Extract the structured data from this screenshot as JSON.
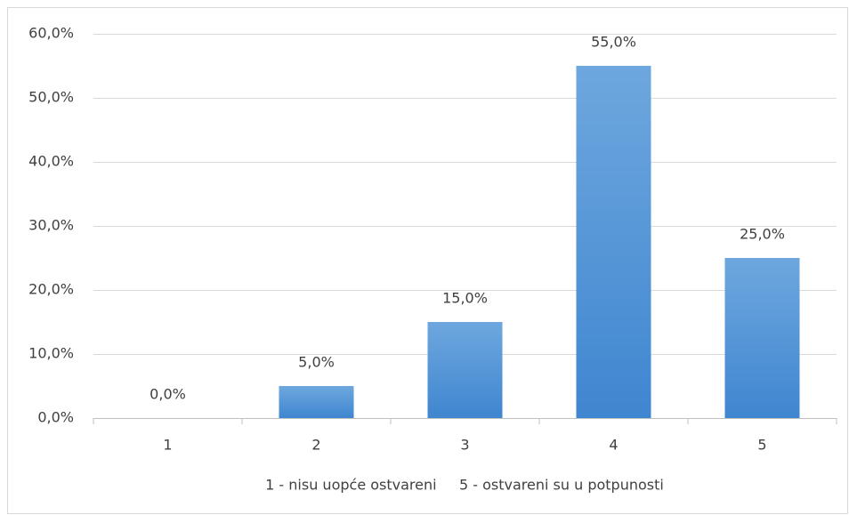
{
  "chart_data": {
    "type": "bar",
    "categories": [
      "1",
      "2",
      "3",
      "4",
      "5"
    ],
    "values": [
      0,
      5,
      15,
      55,
      25
    ],
    "value_labels": [
      "0,0%",
      "5,0%",
      "15,0%",
      "55,0%",
      "25,0%"
    ],
    "color": "#4a90d9",
    "x_label": "1 - nisu uopće ostvareni     5 - ostvareni su u potpunosti",
    "ylim": [
      0,
      60
    ],
    "yticks": [
      {
        "value": 0,
        "label": "0,0%"
      },
      {
        "value": 10,
        "label": "10,0%"
      },
      {
        "value": 20,
        "label": "20,0%"
      },
      {
        "value": 30,
        "label": "30,0%"
      },
      {
        "value": 40,
        "label": "40,0%"
      },
      {
        "value": 50,
        "label": "50,0%"
      },
      {
        "value": 60,
        "label": "60,0%"
      }
    ],
    "grid": true
  }
}
